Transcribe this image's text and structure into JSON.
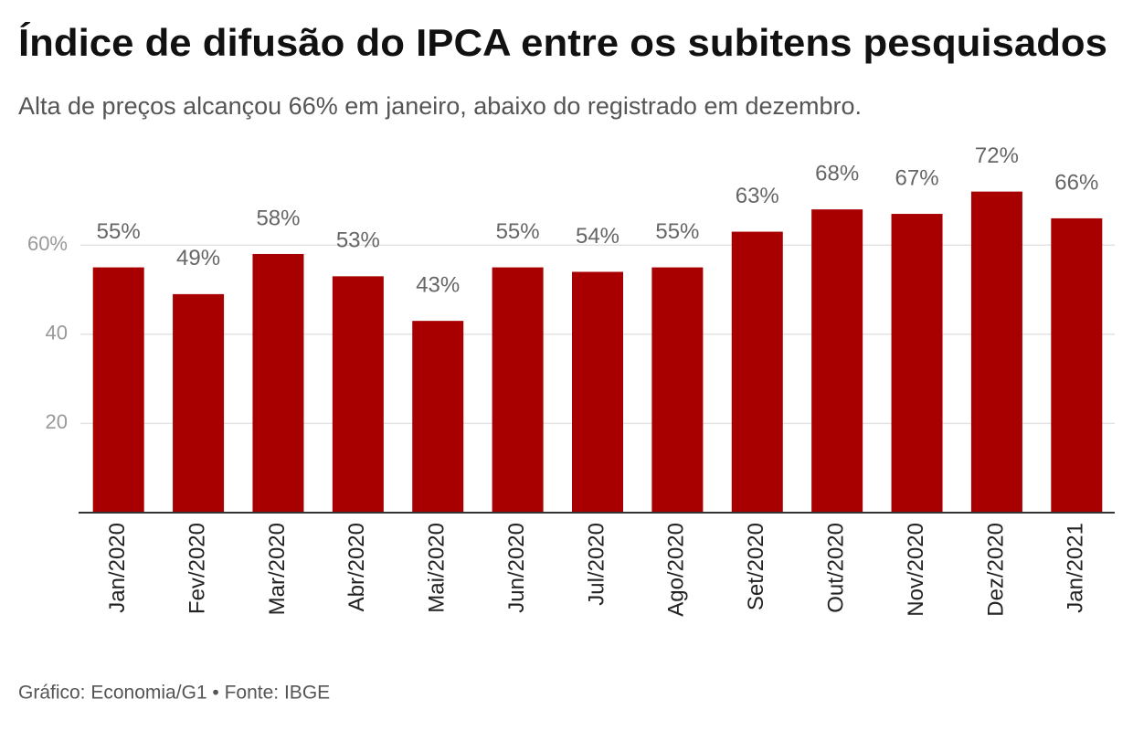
{
  "chart_data": {
    "type": "bar",
    "title": "Índice de difusão do IPCA entre os subitens pesquisados",
    "subtitle": "Alta de preços alcançou 66% em janeiro, abaixo do registrado em dezembro.",
    "source": "Gráfico: Economia/G1 • Fonte: IBGE",
    "categories": [
      "Jan/2020",
      "Fev/2020",
      "Mar/2020",
      "Abr/2020",
      "Mai/2020",
      "Jun/2020",
      "Jul/2020",
      "Ago/2020",
      "Set/2020",
      "Out/2020",
      "Nov/2020",
      "Dez/2020",
      "Jan/2021"
    ],
    "values": [
      55,
      49,
      58,
      53,
      43,
      55,
      54,
      55,
      63,
      68,
      67,
      72,
      66
    ],
    "value_labels": [
      "55%",
      "49%",
      "58%",
      "53%",
      "43%",
      "55%",
      "54%",
      "55%",
      "63%",
      "68%",
      "67%",
      "72%",
      "66%"
    ],
    "color": "#a80000",
    "ylim": [
      0,
      75
    ],
    "yticks": [
      20,
      40,
      {
        "value": 60,
        "label": "60%"
      }
    ],
    "grid": true
  }
}
